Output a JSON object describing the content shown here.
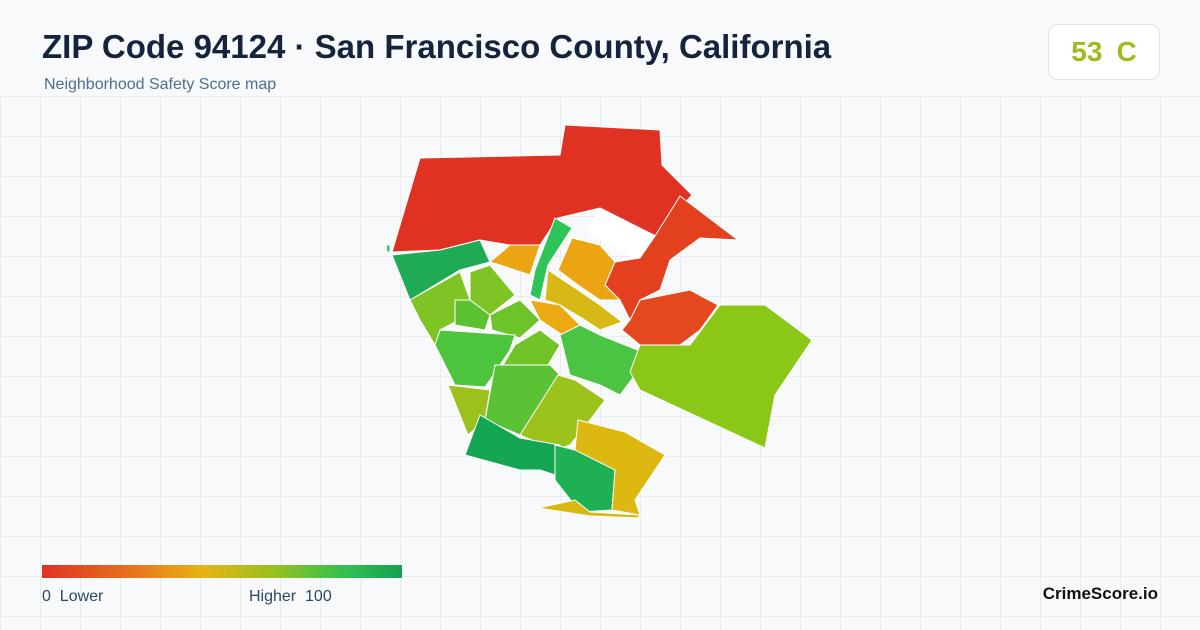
{
  "header": {
    "title": "ZIP Code 94124 · San Francisco County, California",
    "subtitle": "Neighborhood Safety Score map"
  },
  "score": {
    "value": "53",
    "grade": "C"
  },
  "legend": {
    "min": "0",
    "min_label": "Lower",
    "max_label": "Higher",
    "max": "100"
  },
  "brand": "CrimeScore.io"
}
